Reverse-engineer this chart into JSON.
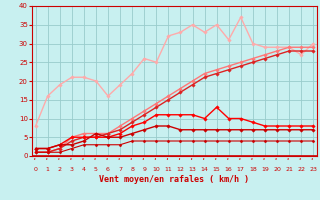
{
  "x": [
    0,
    1,
    2,
    3,
    4,
    5,
    6,
    7,
    8,
    9,
    10,
    11,
    12,
    13,
    14,
    15,
    16,
    17,
    18,
    19,
    20,
    21,
    22,
    23
  ],
  "series": [
    {
      "values": [
        8,
        16,
        19,
        21,
        21,
        20,
        16,
        19,
        22,
        26,
        25,
        32,
        33,
        35,
        33,
        35,
        31,
        37,
        30,
        29,
        29,
        29,
        27,
        30
      ],
      "color": "#ffaaaa",
      "linewidth": 1.0,
      "marker": "D",
      "markersize": 1.8
    },
    {
      "values": [
        1,
        1,
        2,
        5,
        6,
        6,
        6,
        8,
        10,
        12,
        14,
        16,
        18,
        20,
        22,
        23,
        24,
        25,
        26,
        27,
        28,
        29,
        29,
        29
      ],
      "color": "#ff7777",
      "linewidth": 1.0,
      "marker": "D",
      "markersize": 1.8
    },
    {
      "values": [
        1,
        1,
        2,
        4,
        5,
        5,
        6,
        7,
        9,
        11,
        13,
        15,
        17,
        19,
        21,
        22,
        23,
        24,
        25,
        26,
        27,
        28,
        28,
        28
      ],
      "color": "#dd2222",
      "linewidth": 1.0,
      "marker": "D",
      "markersize": 1.8
    },
    {
      "values": [
        2,
        2,
        3,
        5,
        5,
        5,
        5,
        6,
        8,
        9,
        11,
        11,
        11,
        11,
        10,
        13,
        10,
        10,
        9,
        8,
        8,
        8,
        8,
        8
      ],
      "color": "#ff0000",
      "linewidth": 1.0,
      "marker": "D",
      "markersize": 1.8
    },
    {
      "values": [
        2,
        2,
        3,
        3,
        4,
        6,
        5,
        5,
        6,
        7,
        8,
        8,
        7,
        7,
        7,
        7,
        7,
        7,
        7,
        7,
        7,
        7,
        7,
        7
      ],
      "color": "#cc0000",
      "linewidth": 1.0,
      "marker": "D",
      "markersize": 1.8
    },
    {
      "values": [
        1,
        1,
        1,
        2,
        3,
        3,
        3,
        3,
        4,
        4,
        4,
        4,
        4,
        4,
        4,
        4,
        4,
        4,
        4,
        4,
        4,
        4,
        4,
        4
      ],
      "color": "#cc0000",
      "linewidth": 0.8,
      "marker": "D",
      "markersize": 1.5
    }
  ],
  "xlabel": "Vent moyen/en rafales ( km/h )",
  "xlim": [
    -0.3,
    23.3
  ],
  "ylim": [
    0,
    40
  ],
  "yticks": [
    0,
    5,
    10,
    15,
    20,
    25,
    30,
    35,
    40
  ],
  "xticks": [
    0,
    1,
    2,
    3,
    4,
    5,
    6,
    7,
    8,
    9,
    10,
    11,
    12,
    13,
    14,
    15,
    16,
    17,
    18,
    19,
    20,
    21,
    22,
    23
  ],
  "bg_color": "#c8f0f0",
  "grid_color": "#99cccc",
  "tick_color": "#cc0000",
  "label_color": "#cc0000",
  "axline_color": "#cc0000"
}
